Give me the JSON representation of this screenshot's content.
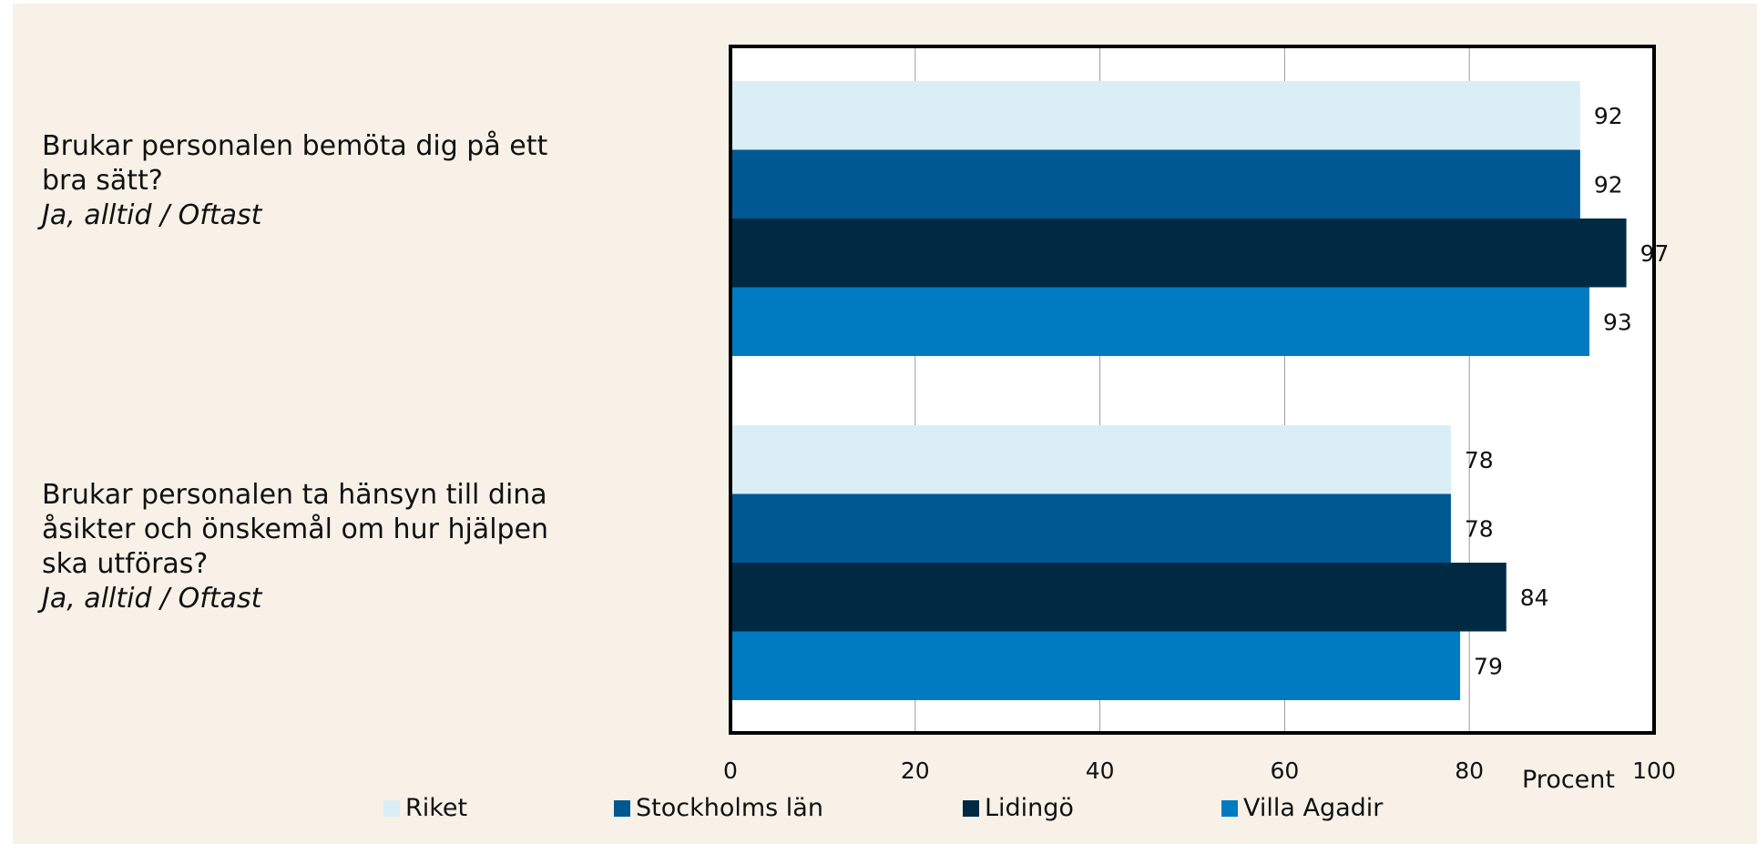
{
  "questions": [
    {
      "question": "Brukar personalen bemöta dig på ett bra sätt?",
      "answer": "Ja, alltid / Oftast"
    },
    {
      "question": "Brukar personalen ta hänsyn till dina åsikter och önskemål om hur hjälpen ska utföras?",
      "answer": "Ja, alltid / Oftast"
    }
  ],
  "chart_data": {
    "type": "bar",
    "orientation": "horizontal",
    "categories": [
      "Brukar personalen bemöta dig på ett bra sätt? Ja, alltid / Oftast",
      "Brukar personalen ta hänsyn till dina åsikter och önskemål om hur hjälpen ska utföras? Ja, alltid / Oftast"
    ],
    "series": [
      {
        "name": "Riket",
        "values": [
          92,
          78
        ],
        "color": "#daeef5"
      },
      {
        "name": "Stockholms län",
        "values": [
          92,
          78
        ],
        "color": "#005893"
      },
      {
        "name": "Lidingö",
        "values": [
          97,
          84
        ],
        "color": "#002a44"
      },
      {
        "name": "Villa Agadir",
        "values": [
          93,
          79
        ],
        "color": "#007bc2"
      }
    ],
    "xlabel": "Procent",
    "xlim": [
      0,
      100
    ],
    "xticks": [
      0,
      20,
      40,
      60,
      80,
      100
    ],
    "grid": true,
    "legend": "bottom",
    "data_labels": true
  }
}
